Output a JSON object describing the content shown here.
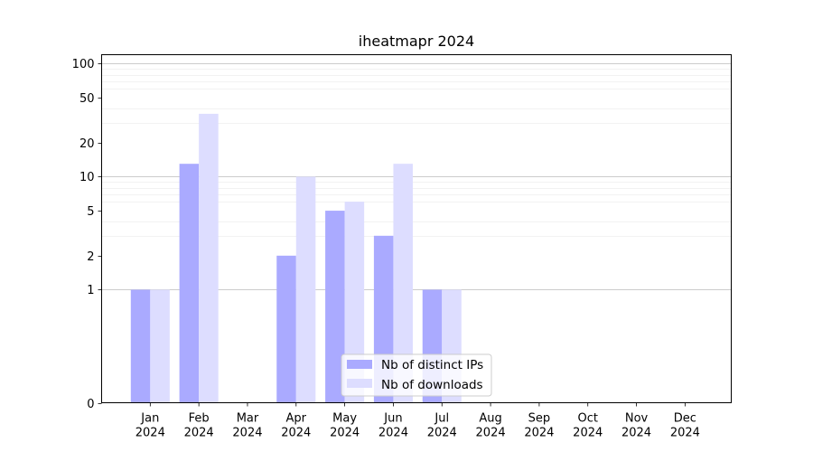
{
  "chart_data": {
    "type": "bar",
    "title": "iheatmapr 2024",
    "xlabel": "",
    "ylabel": "",
    "y_scale": "symlog",
    "ylim": [
      0,
      120
    ],
    "y_ticks": [
      0,
      1,
      2,
      5,
      10,
      20,
      50,
      100
    ],
    "y_tick_labels": [
      "0",
      "1",
      "2",
      "5",
      "10",
      "20",
      "50",
      "100"
    ],
    "categories": [
      "Jan\n2024",
      "Feb\n2024",
      "Mar\n2024",
      "Apr\n2024",
      "May\n2024",
      "Jun\n2024",
      "Jul\n2024",
      "Aug\n2024",
      "Sep\n2024",
      "Oct\n2024",
      "Nov\n2024",
      "Dec\n2024"
    ],
    "series": [
      {
        "name": "Nb of distinct IPs",
        "color": "#aaaaff",
        "values": [
          1,
          13,
          0,
          2,
          5,
          3,
          1,
          0,
          0,
          0,
          0,
          0
        ]
      },
      {
        "name": "Nb of downloads",
        "color": "#ddddff",
        "values": [
          1,
          36,
          0,
          10,
          6,
          13,
          1,
          0,
          0,
          0,
          0,
          0
        ]
      }
    ],
    "grid": true,
    "legend_position": "bottom-center"
  }
}
